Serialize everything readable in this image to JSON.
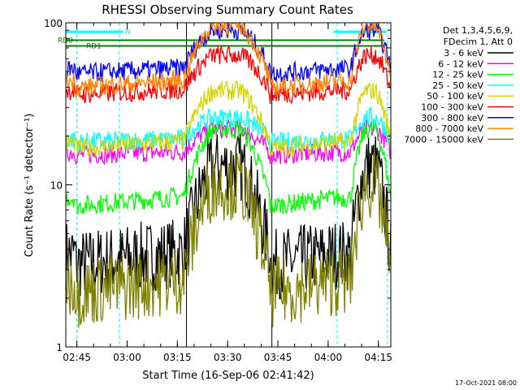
{
  "chart_data": {
    "type": "line",
    "title": "RHESSI Observing Summary Count Rates",
    "xlabel": "Start Time (16-Sep-06 02:41:42)",
    "ylabel": "Count Rate (s⁻¹ detector⁻¹)",
    "yscale": "log",
    "ylim": [
      1,
      100
    ],
    "xlim_minutes": [
      0,
      38
    ],
    "x_ticks": [
      {
        "label": "02:45",
        "min": 3.3
      },
      {
        "label": "03:00",
        "min": 18.3
      },
      {
        "label": "03:15",
        "min": 33.3
      },
      {
        "label": "03:30",
        "min": 48.3
      },
      {
        "label": "03:45",
        "min": 63.3
      },
      {
        "label": "04:00",
        "min": 78.3
      },
      {
        "label": "04:15",
        "min": 93.3
      }
    ],
    "y_ticks": [
      {
        "label": "1",
        "value": 1
      },
      {
        "label": "10",
        "value": 10
      },
      {
        "label": "100",
        "value": 100
      }
    ],
    "legend": {
      "header": [
        "Det 1,3,4,5,6,9,",
        "FDecim 1, Att 0"
      ],
      "placement": "right"
    },
    "series": [
      {
        "name": "3 - 6 keV",
        "color": "#000000",
        "night": 3,
        "day": 13
      },
      {
        "name": "6 - 12 keV",
        "color": "#ff00ff",
        "night": 15,
        "day": 22
      },
      {
        "name": "12 - 25 keV",
        "color": "#00ff00",
        "night": 7,
        "day": 22
      },
      {
        "name": "25 - 50 keV",
        "color": "#00ffff",
        "night": 18,
        "day": 26
      },
      {
        "name": "50 - 100 keV",
        "color": "#d4d400",
        "night": 16,
        "day": 38
      },
      {
        "name": "100 - 300 keV",
        "color": "#ff0000",
        "night": 35,
        "day": 63
      },
      {
        "name": "300 - 800 keV",
        "color": "#0000ff",
        "night": 47,
        "day": 90
      },
      {
        "name": "800 - 7000 keV",
        "color": "#ff8000",
        "night": 38,
        "day": 96
      },
      {
        "name": "7000 - 15000 keV",
        "color": "#808000",
        "night": 2,
        "day": 10
      }
    ],
    "annotations": [
      {
        "label": "RD0",
        "color": "#008000",
        "value": 78
      },
      {
        "label": "RD1",
        "color": "#008000",
        "value": 72
      },
      {
        "label": "N",
        "color": "#00ffff",
        "value": 85
      }
    ],
    "footer": "17-Oct-2021 08:00"
  }
}
